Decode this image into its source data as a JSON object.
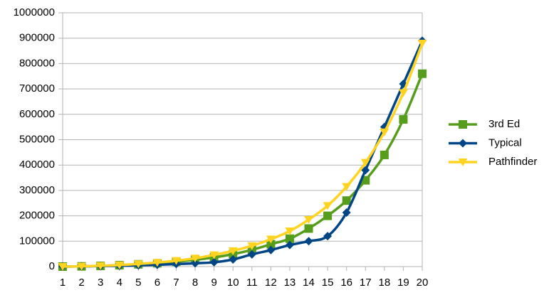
{
  "chart_data": {
    "type": "line",
    "categories": [
      "1",
      "2",
      "3",
      "4",
      "5",
      "6",
      "7",
      "8",
      "9",
      "10",
      "11",
      "12",
      "13",
      "14",
      "15",
      "16",
      "17",
      "18",
      "19",
      "20"
    ],
    "series": [
      {
        "name": "3rd Ed",
        "color": "#579d1c",
        "marker": "square",
        "values": [
          0,
          900,
          2700,
          5400,
          9000,
          13000,
          19000,
          27000,
          36000,
          49000,
          66000,
          88000,
          110000,
          150000,
          200000,
          260000,
          340000,
          440000,
          580000,
          760000
        ]
      },
      {
        "name": "Typical",
        "color": "#004586",
        "marker": "diamond",
        "values": [
          0,
          1000,
          2000,
          3000,
          5000,
          7000,
          10000,
          13000,
          17000,
          28000,
          48000,
          65000,
          85000,
          100000,
          120000,
          213000,
          380000,
          550000,
          720000,
          890000
        ]
      },
      {
        "name": "Pathfinder",
        "color": "#ffd320",
        "marker": "triangle-down",
        "values": [
          0,
          1000,
          3000,
          6000,
          10500,
          16000,
          23500,
          33000,
          46000,
          62000,
          82000,
          108000,
          140000,
          185000,
          240000,
          315000,
          410000,
          530000,
          685000,
          880000
        ]
      }
    ],
    "ylim": [
      0,
      1000000
    ],
    "yticks": [
      0,
      100000,
      200000,
      300000,
      400000,
      500000,
      600000,
      700000,
      800000,
      900000,
      1000000
    ],
    "grid": true,
    "smooth": true,
    "legend": "right"
  }
}
